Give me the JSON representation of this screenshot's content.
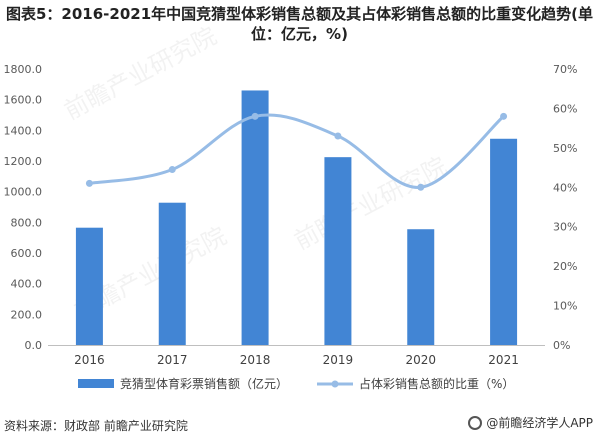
{
  "title": "图表5：2016-2021年中国竞猜型体彩销售总额及其占体彩销售总额的比重变化趋势(单位：亿元，%)",
  "source": "资料来源：财政部 前瞻产业研究院",
  "brand": "@前瞻经济学人APP",
  "watermark": "前瞻产业研究院",
  "colors": {
    "bar": "#4285d4",
    "line": "#97bce6",
    "axis": "#bfbfbf"
  },
  "chart_data": {
    "type": "bar",
    "categories": [
      "2016",
      "2017",
      "2018",
      "2019",
      "2020",
      "2021"
    ],
    "series": [
      {
        "name": "竞猜型体育彩票销售额（亿元）",
        "type": "bar",
        "axis": "left",
        "values": [
          765,
          928,
          1660,
          1225,
          755,
          1345
        ]
      },
      {
        "name": "占体彩销售总额的比重（%）",
        "type": "line",
        "axis": "right",
        "values": [
          41,
          44.5,
          58,
          53,
          40,
          58
        ]
      }
    ],
    "y_left": {
      "min": 0,
      "max": 1800,
      "step": 200,
      "ticks": [
        "0.0",
        "200.0",
        "400.0",
        "600.0",
        "800.0",
        "1000.0",
        "1200.0",
        "1400.0",
        "1600.0",
        "1800.0"
      ]
    },
    "y_right": {
      "min": 0,
      "max": 70,
      "step": 10,
      "ticks": [
        "0%",
        "10%",
        "20%",
        "30%",
        "40%",
        "50%",
        "60%",
        "70%"
      ]
    },
    "legend": "bottom",
    "grid": false
  }
}
